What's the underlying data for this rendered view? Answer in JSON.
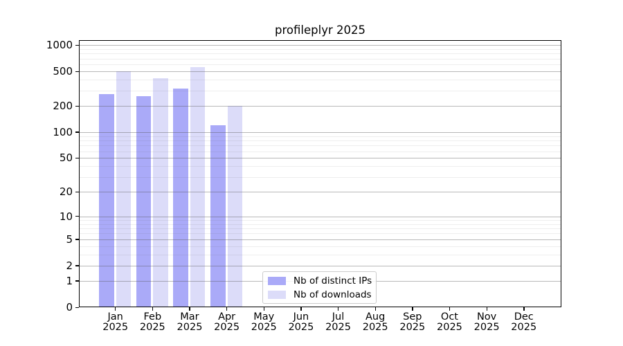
{
  "chart_data": {
    "type": "bar",
    "title": "profileplyr 2025",
    "categories": [
      "Jan 2025",
      "Feb 2025",
      "Mar 2025",
      "Apr 2025",
      "May 2025",
      "Jun 2025",
      "Jul 2025",
      "Aug 2025",
      "Sep 2025",
      "Oct 2025",
      "Nov 2025",
      "Dec 2025"
    ],
    "series": [
      {
        "name": "Nb of distinct IPs",
        "color": "#aaaaf8",
        "values": [
          275,
          260,
          320,
          120,
          null,
          null,
          null,
          null,
          null,
          null,
          null,
          null
        ]
      },
      {
        "name": "Nb of downloads",
        "color": "#dcdcf9",
        "values": [
          500,
          415,
          555,
          200,
          null,
          null,
          null,
          null,
          null,
          null,
          null,
          null
        ]
      }
    ],
    "y_axis": {
      "scale": "log1p",
      "ticks": [
        0,
        1,
        2,
        5,
        10,
        20,
        50,
        100,
        200,
        500,
        1000
      ],
      "minor_gridlines": [
        3,
        4,
        6,
        7,
        8,
        9,
        30,
        40,
        60,
        70,
        80,
        90,
        300,
        400,
        600,
        700,
        800,
        900
      ],
      "range_top_value": 1140
    },
    "xlabel": "",
    "ylabel": "",
    "grid": "horizontal major and minor, drawn over bars",
    "legend_position": "inside, lower center"
  },
  "colors": {
    "bar_distinct_ips": "#aaaaf8",
    "bar_downloads": "#dcdcf9",
    "grid_major": "rgba(85,85,85,0.42)",
    "grid_minor": "rgba(85,85,85,0.10)",
    "spine": "#000000",
    "background": "#ffffff",
    "legend_border": "#cccccc",
    "text": "#000000"
  }
}
